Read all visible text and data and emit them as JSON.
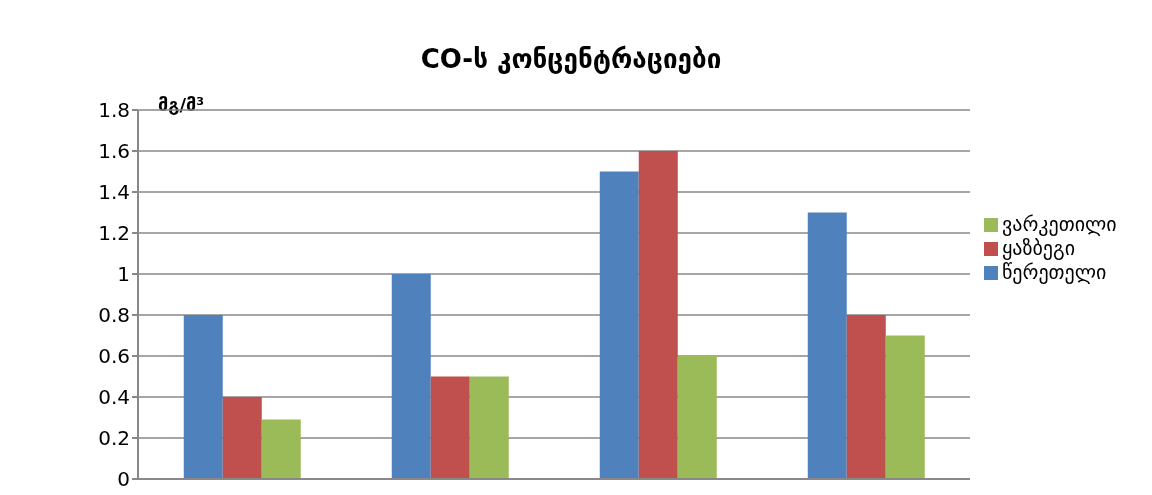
{
  "chart_data": {
    "type": "bar",
    "title": "CO-ს კონცენტრაციები",
    "ylabel": "მგ/მ³",
    "categories": [
      null,
      null,
      null,
      null
    ],
    "series": [
      {
        "name": "წერეთელი",
        "color": "#4f81bd",
        "values": [
          0.8,
          1.0,
          1.5,
          1.3
        ]
      },
      {
        "name": "ყაზბეგი",
        "color": "#c0504d",
        "values": [
          0.4,
          0.5,
          1.6,
          0.8
        ]
      },
      {
        "name": "ვარკეთილი",
        "color": "#9bbb59",
        "values": [
          0.29,
          0.5,
          0.6,
          0.7
        ]
      }
    ],
    "ylim": [
      0,
      1.8
    ],
    "yticks": [
      0,
      0.2,
      0.4,
      0.6,
      0.8,
      1,
      1.2,
      1.4,
      1.6,
      1.8
    ],
    "grid": "y",
    "legend": "right"
  }
}
